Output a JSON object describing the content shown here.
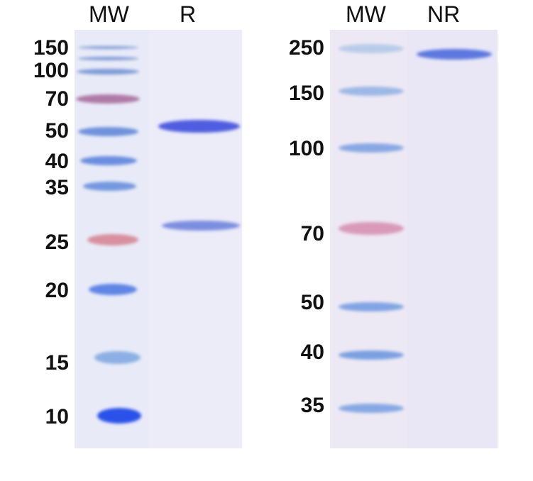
{
  "left_gel": {
    "lanes": [
      "MW",
      "R"
    ],
    "marker_labels": [
      "150",
      "100",
      "70",
      "50",
      "40",
      "35",
      "25",
      "20",
      "15",
      "10"
    ],
    "marker_bands": [
      {
        "kda": "150",
        "color": "#7e9ad8"
      },
      {
        "kda": "~120",
        "color": "#7e9ad8"
      },
      {
        "kda": "100",
        "color": "#7e9ad8"
      },
      {
        "kda": "70",
        "color": "#b07aa8"
      },
      {
        "kda": "50",
        "color": "#6f92dc"
      },
      {
        "kda": "40",
        "color": "#6a8ee0"
      },
      {
        "kda": "35",
        "color": "#7498e0"
      },
      {
        "kda": "25",
        "color": "#d8909e"
      },
      {
        "kda": "20",
        "color": "#5f86e6"
      },
      {
        "kda": "15",
        "color": "#8cb0e4"
      },
      {
        "kda": "10",
        "color": "#2a52ea"
      }
    ],
    "sample_bands": [
      {
        "lane": "R",
        "kda": "~55",
        "color": "#4f5ee0"
      },
      {
        "lane": "R",
        "kda": "~27",
        "color": "#7c8ee0"
      }
    ]
  },
  "right_gel": {
    "lanes": [
      "MW",
      "NR"
    ],
    "marker_labels": [
      "250",
      "150",
      "100",
      "70",
      "50",
      "40",
      "35"
    ],
    "marker_bands": [
      {
        "kda": "250",
        "color": "#b8cce8"
      },
      {
        "kda": "150",
        "color": "#9cb8e6"
      },
      {
        "kda": "100",
        "color": "#88a8e4"
      },
      {
        "kda": "70",
        "color": "#d89ab8"
      },
      {
        "kda": "50",
        "color": "#80a4e4"
      },
      {
        "kda": "40",
        "color": "#7aa0e2"
      },
      {
        "kda": "35",
        "color": "#86a8e4"
      }
    ],
    "sample_bands": [
      {
        "lane": "NR",
        "kda": "~250",
        "color": "#5d78e0"
      }
    ]
  }
}
